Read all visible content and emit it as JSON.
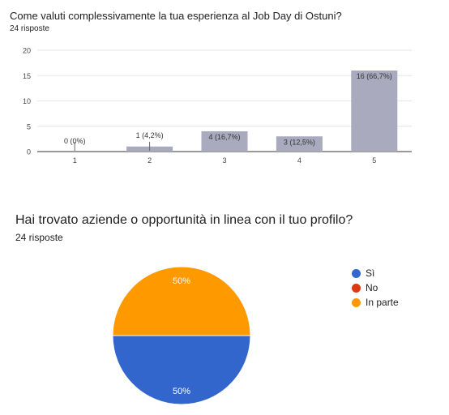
{
  "questions": [
    {
      "title": "Come valuti complessivamente la tua esperienza al Job Day di Ostuni?",
      "responses": "24 risposte"
    },
    {
      "title": "Hai trovato aziende o opportunità in linea con il tuo profilo?",
      "responses": "24 risposte"
    }
  ],
  "chart_data": [
    {
      "type": "bar",
      "title": "Come valuti complessivamente la tua esperienza al Job Day di Ostuni?",
      "categories": [
        "1",
        "2",
        "3",
        "4",
        "5"
      ],
      "values": [
        0,
        1,
        4,
        3,
        16
      ],
      "labels": [
        "0 (0%)",
        "1 (4,2%)",
        "4 (16,7%)",
        "3 (12,5%)",
        "16 (66,7%)"
      ],
      "yticks": [
        "0",
        "5",
        "10",
        "15",
        "20"
      ],
      "ylim": [
        0,
        20
      ],
      "grid": true,
      "color": "#a9aabd"
    },
    {
      "type": "pie",
      "title": "Hai trovato aziende o opportunità in linea con il tuo profilo?",
      "slices": [
        {
          "name": "Sì",
          "value": 50,
          "label": "50%",
          "color": "#3366cc"
        },
        {
          "name": "No",
          "value": 0,
          "label": "",
          "color": "#dc3912"
        },
        {
          "name": "In parte",
          "value": 50,
          "label": "50%",
          "color": "#ff9900"
        }
      ],
      "legend_position": "right"
    }
  ]
}
